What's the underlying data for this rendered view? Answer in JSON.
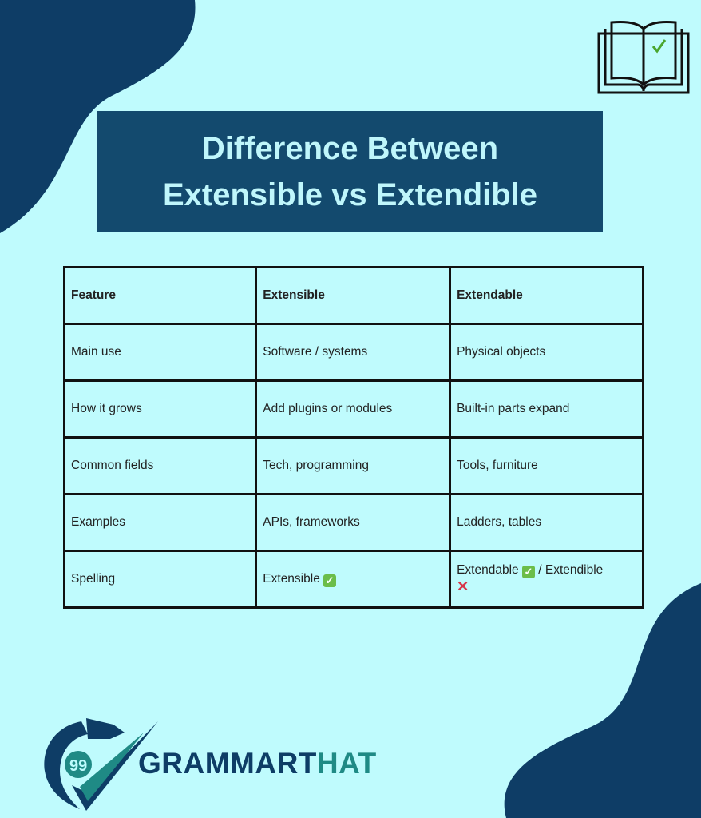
{
  "colors": {
    "background": "#bffbfd",
    "dark_blue": "#0e3d66",
    "title_text": "#bff6fb",
    "check_green": "#6bbd4a",
    "cross_red": "#d6374a",
    "brand_teal": "#1f8a85"
  },
  "title": {
    "line1": "Difference Between",
    "line2": "Extensible vs Extendible"
  },
  "table": {
    "headers": [
      "Feature",
      "Extensible",
      "Extendable"
    ],
    "rows": [
      [
        "Main use",
        "Software / systems",
        "Physical objects"
      ],
      [
        "How it grows",
        "Add plugins or modules",
        "Built-in parts expand"
      ],
      [
        "Common fields",
        "Tech, programming",
        "Tools, furniture"
      ],
      [
        "Examples",
        "APIs, frameworks",
        "Ladders, tables"
      ]
    ],
    "spelling": {
      "label": "Spelling",
      "col1": "Extensible",
      "col2a": "Extendable",
      "col2b": "/ Extendible",
      "check": "✓",
      "cross": "✕"
    }
  },
  "brand": {
    "part1": "GRAMMART",
    "part2": "HAT",
    "quote_glyph": "99"
  },
  "icons": {
    "top_right": "open-book-check-icon",
    "check": "check-mark-icon",
    "cross": "cross-mark-icon"
  }
}
